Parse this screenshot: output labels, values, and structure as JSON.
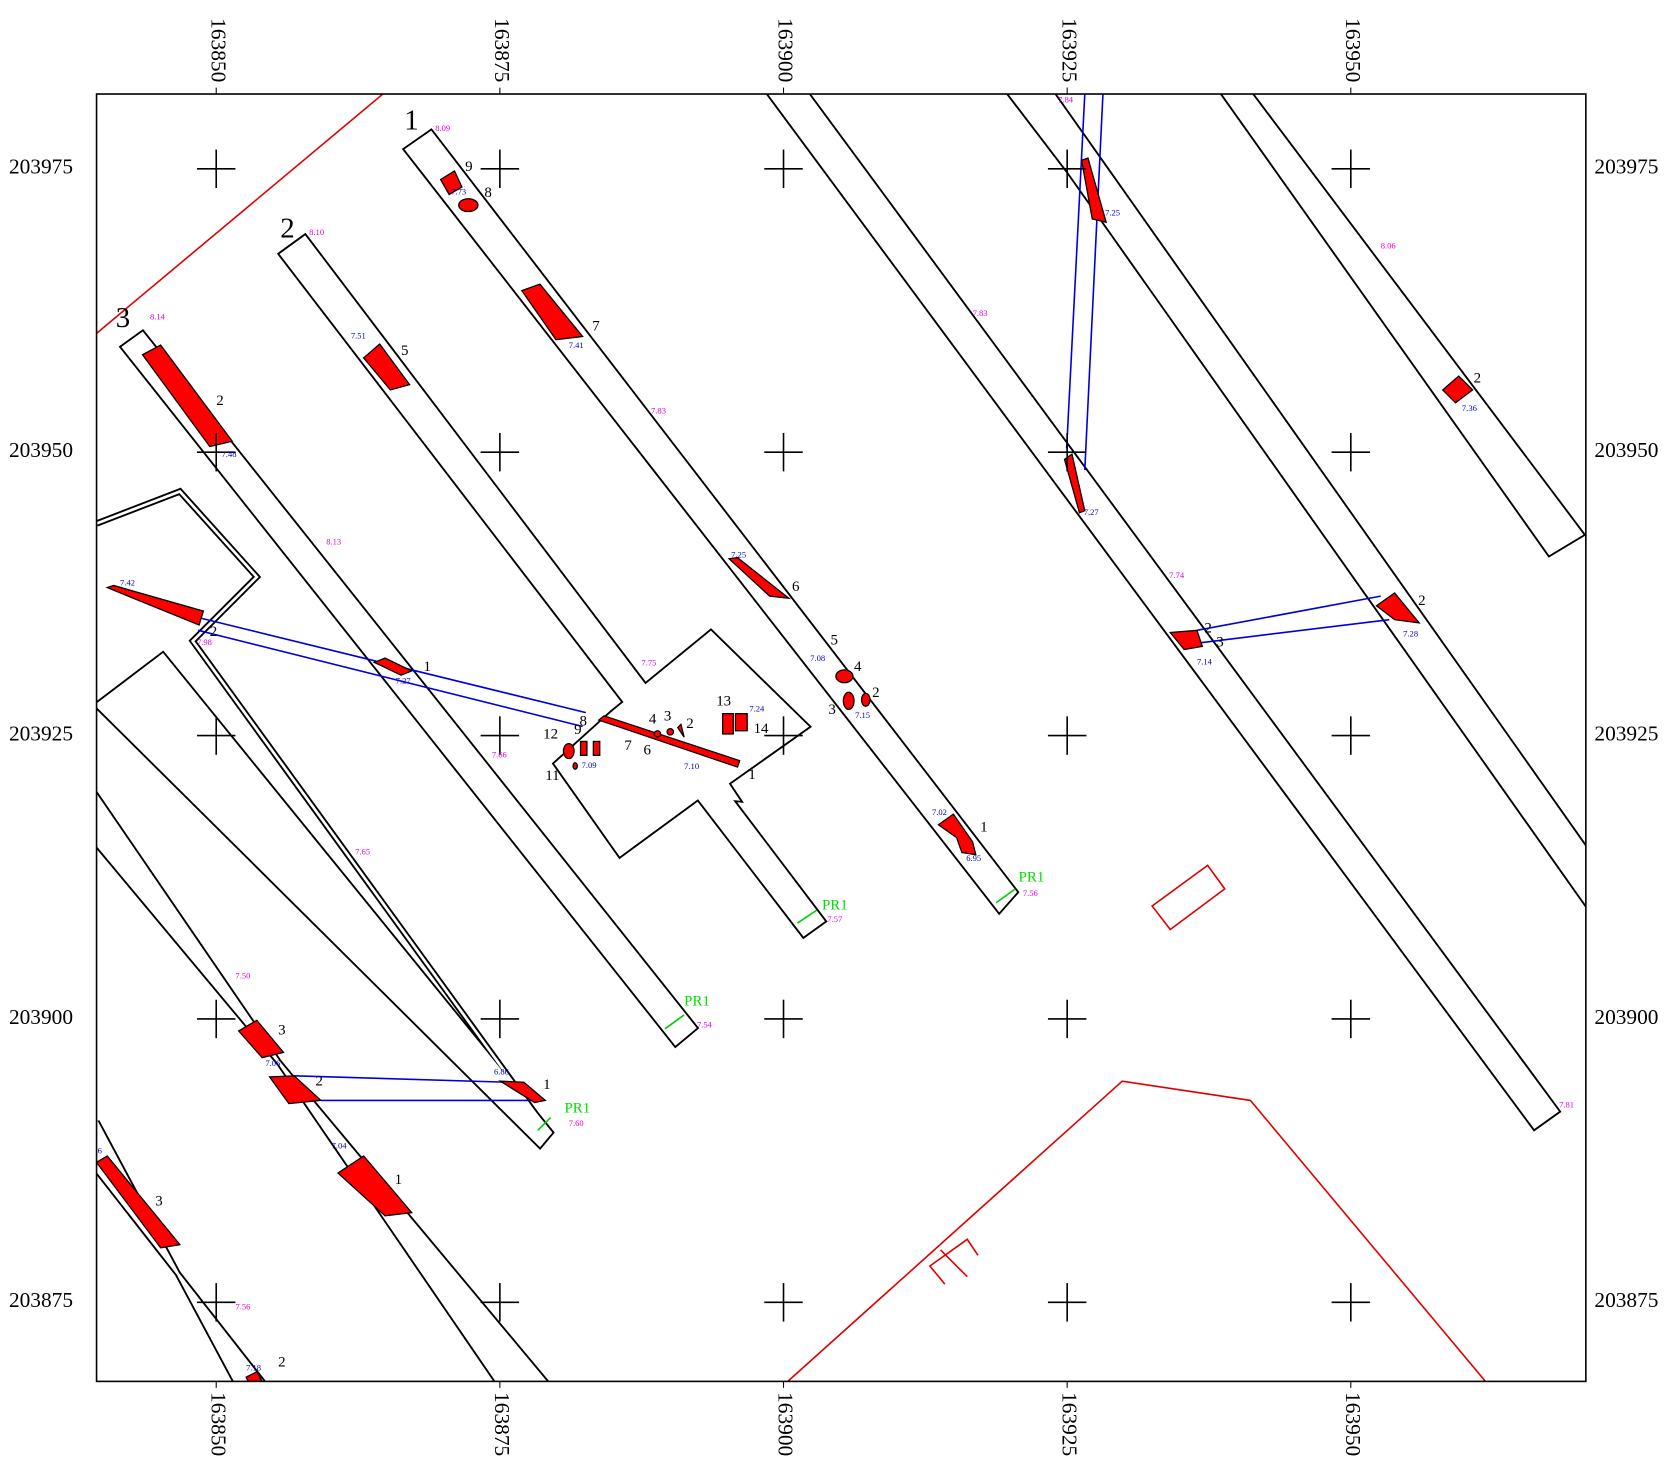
{
  "axes": {
    "x_ticks": [
      163850,
      163875,
      163900,
      163925,
      163950
    ],
    "y_ticks": [
      203975,
      203950,
      203925,
      203900,
      203875
    ]
  },
  "labels": {
    "trench_numbers": [
      "1",
      "2",
      "3"
    ],
    "feature_numbers": [
      "9",
      "8",
      "7",
      "5",
      "2",
      "6",
      "5",
      "4",
      "2",
      "3",
      "1",
      "1",
      "2",
      "8",
      "9",
      "12",
      "11",
      "4",
      "3",
      "2",
      "7",
      "6",
      "13",
      "14",
      "1",
      "2",
      "2",
      "2",
      "3",
      "3",
      "2",
      "1",
      "1",
      "3",
      "2"
    ],
    "elevations_magenta": [
      "8.09",
      "8.10",
      "8.14",
      "8.13",
      "7.83",
      "7.75",
      "7.66",
      "7.65",
      "7.50",
      "7.56",
      "7.57",
      "7.54",
      "7.60",
      "7.56",
      "7.83",
      "7.84",
      "8.06",
      "7.74",
      "7.81",
      "7.98"
    ],
    "elevations_blue": [
      "7.73",
      "7.41",
      "7.51",
      "7.48",
      "7.42",
      "7.27",
      "7.25",
      "7.08",
      "7.15",
      "7.24",
      "7.09",
      "7.10",
      "7.02",
      "6.95",
      "7.25",
      "7.27",
      "7.36",
      "7.28",
      "7.14",
      "7.06",
      "6.86",
      "7.04",
      "7.18",
      "6"
    ],
    "sections": [
      "PR1",
      "PR1",
      "PR1",
      "PR1"
    ]
  }
}
